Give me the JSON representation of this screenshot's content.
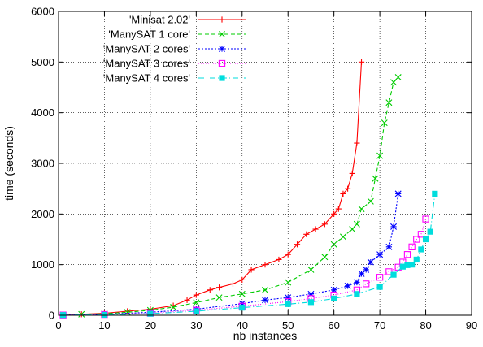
{
  "chart_data": {
    "type": "line",
    "title": "",
    "xlabel": "nb instances",
    "ylabel": "time (seconds)",
    "xlim": [
      0,
      90
    ],
    "ylim": [
      0,
      6000
    ],
    "xticks": [
      0,
      10,
      20,
      30,
      40,
      50,
      60,
      70,
      80,
      90
    ],
    "yticks": [
      0,
      1000,
      2000,
      3000,
      4000,
      5000,
      6000
    ],
    "grid": true,
    "legend_position": "top-left",
    "series": [
      {
        "name": "'Minisat 2.02'",
        "color": "#ff0000",
        "marker": "plus",
        "dash": "",
        "x": [
          1,
          5,
          10,
          15,
          20,
          25,
          28,
          30,
          33,
          35,
          38,
          40,
          42,
          45,
          48,
          50,
          52,
          54,
          56,
          58,
          60,
          61,
          62,
          63,
          64,
          65,
          66
        ],
        "y": [
          10,
          20,
          40,
          80,
          120,
          190,
          300,
          400,
          500,
          550,
          620,
          700,
          900,
          1000,
          1100,
          1200,
          1400,
          1600,
          1700,
          1800,
          2000,
          2100,
          2400,
          2500,
          2800,
          3400,
          5000
        ]
      },
      {
        "name": "'ManySAT 1 core'",
        "color": "#00cc00",
        "marker": "x",
        "dash": "5,3",
        "x": [
          1,
          5,
          10,
          15,
          20,
          25,
          30,
          35,
          40,
          45,
          50,
          55,
          58,
          60,
          62,
          64,
          65,
          66,
          68,
          69,
          70,
          71,
          72,
          73,
          74
        ],
        "y": [
          10,
          20,
          30,
          60,
          100,
          160,
          250,
          350,
          420,
          500,
          650,
          900,
          1150,
          1400,
          1550,
          1700,
          1800,
          2100,
          2250,
          2700,
          3150,
          3800,
          4200,
          4600,
          4700
        ]
      },
      {
        "name": "'ManySAT 2 cores'",
        "color": "#0000ff",
        "marker": "star",
        "dash": "2,2",
        "x": [
          1,
          10,
          20,
          30,
          40,
          45,
          50,
          55,
          60,
          63,
          65,
          66,
          67,
          68,
          70,
          72,
          73,
          74
        ],
        "y": [
          5,
          20,
          60,
          120,
          230,
          300,
          350,
          420,
          500,
          580,
          650,
          820,
          900,
          1050,
          1200,
          1350,
          1750,
          2400
        ]
      },
      {
        "name": "'ManySAT 3 cores'",
        "color": "#ff00ff",
        "marker": "square",
        "dash": "1,2",
        "x": [
          1,
          10,
          20,
          30,
          40,
          50,
          55,
          60,
          65,
          67,
          70,
          72,
          74,
          75,
          76,
          77,
          78,
          79,
          80
        ],
        "y": [
          5,
          15,
          40,
          100,
          180,
          270,
          330,
          400,
          500,
          620,
          750,
          860,
          950,
          1050,
          1200,
          1350,
          1500,
          1600,
          1900
        ]
      },
      {
        "name": "'ManySAT 4 cores'",
        "color": "#00dddd",
        "marker": "filled-square",
        "dash": "7,3,1,3",
        "x": [
          1,
          10,
          20,
          30,
          40,
          50,
          55,
          60,
          65,
          70,
          73,
          75,
          76,
          77,
          78,
          79,
          80,
          81,
          82
        ],
        "y": [
          5,
          10,
          30,
          80,
          150,
          220,
          260,
          330,
          420,
          560,
          800,
          960,
          990,
          1000,
          1100,
          1300,
          1500,
          1650,
          2400
        ]
      }
    ]
  }
}
